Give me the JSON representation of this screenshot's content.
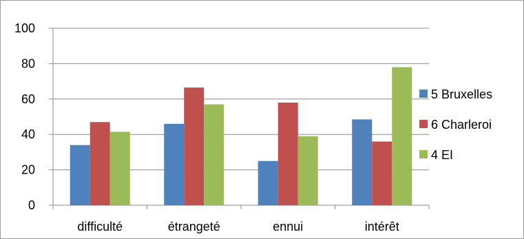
{
  "chart_data": {
    "type": "bar",
    "categories": [
      "difficulté",
      "étrangeté",
      "ennui",
      "intérêt"
    ],
    "series": [
      {
        "name": "5 Bruxelles",
        "values": [
          34,
          46,
          25,
          48.5
        ],
        "color": "#4F81BD"
      },
      {
        "name": "6 Charleroi",
        "values": [
          47,
          66.5,
          58,
          36
        ],
        "color": "#C0504D"
      },
      {
        "name": "4 EI",
        "values": [
          41.5,
          57,
          39,
          78
        ],
        "color": "#9BBB59"
      }
    ],
    "ylim": [
      0,
      100
    ],
    "yticks": [
      0,
      20,
      40,
      60,
      80,
      100
    ],
    "grid": true,
    "legend": "right"
  }
}
